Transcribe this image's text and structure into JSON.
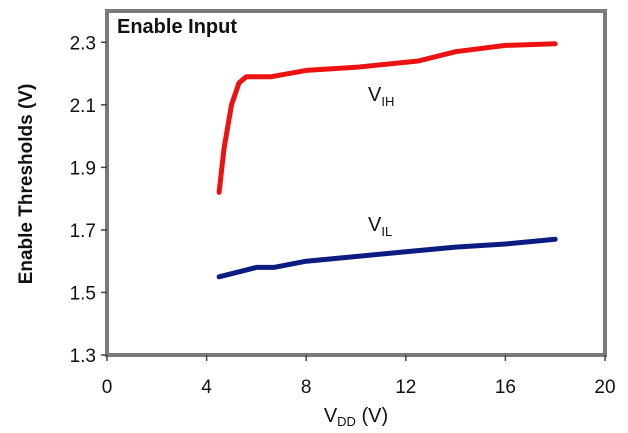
{
  "chart_data": {
    "type": "line",
    "title": "Enable Input",
    "ylabel": "Enable Thresholds (V)",
    "xlabel_main": "V",
    "xlabel_sub": "DD",
    "xlabel_unit": " (V)",
    "xlim": [
      0,
      20
    ],
    "ylim": [
      1.3,
      2.4
    ],
    "xticks": [
      "0",
      "4",
      "8",
      "12",
      "16",
      "20"
    ],
    "yticks": [
      "1.3",
      "1.5",
      "1.7",
      "1.9",
      "2.1",
      "2.3"
    ],
    "grid": false,
    "series": [
      {
        "label_main": "V",
        "label_sub": "IH",
        "color": "#ee1111",
        "x": [
          4.5,
          4.7,
          5.0,
          5.3,
          5.6,
          6.0,
          6.6,
          8,
          10,
          12.5,
          14,
          16,
          18
        ],
        "y": [
          1.82,
          1.96,
          2.1,
          2.17,
          2.19,
          2.19,
          2.19,
          2.21,
          2.22,
          2.24,
          2.27,
          2.29,
          2.295
        ]
      },
      {
        "label_main": "V",
        "label_sub": "IL",
        "color": "#0d1c80",
        "x": [
          4.5,
          5.5,
          6.0,
          6.7,
          8,
          10,
          12,
          14,
          16,
          18
        ],
        "y": [
          1.55,
          1.57,
          1.58,
          1.58,
          1.6,
          1.615,
          1.63,
          1.645,
          1.655,
          1.67
        ]
      }
    ]
  }
}
